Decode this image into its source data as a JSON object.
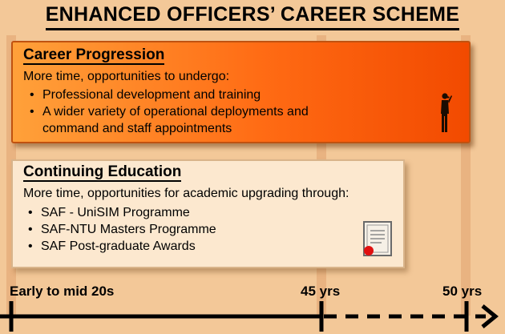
{
  "title": "ENHANCED OFFICERS’ CAREER SCHEME",
  "career": {
    "heading": "Career Progression",
    "intro": "More time, opportunities to undergo:",
    "items": [
      {
        "line1": "Professional development and training",
        "line2": ""
      },
      {
        "line1": "A wider variety of operational deployments and",
        "line2": "command and staff appointments"
      }
    ],
    "icon": "soldier-saluting-icon"
  },
  "education": {
    "heading": "Continuing Education",
    "intro": "More time, opportunities for academic upgrading through:",
    "items": [
      "SAF - UniSIM Programme",
      "SAF-NTU Masters Programme",
      "SAF Post-graduate Awards"
    ],
    "icon": "certificate-icon"
  },
  "timeline": {
    "start_label": "Early to mid 20s",
    "mid_label": "45 yrs",
    "end_label": "50 yrs"
  },
  "colors": {
    "background": "#f3c898",
    "career_box": "#ff6b14",
    "education_box": "#fce8cf"
  }
}
